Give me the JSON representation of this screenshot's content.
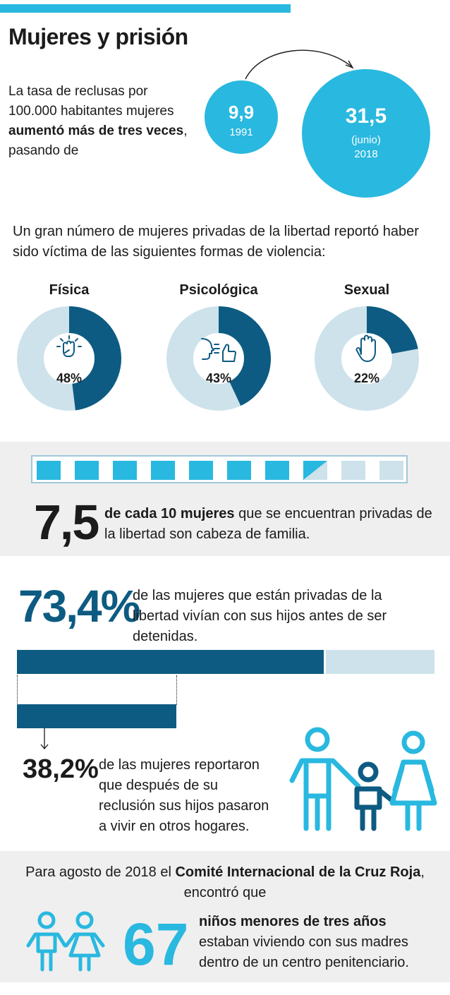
{
  "title": "Mujeres y prisión",
  "intro": {
    "text_a": "La tasa de reclusas por 100.000 habitantes mujeres ",
    "text_b": "aumentó más de tres veces",
    "text_c": ", pasando de"
  },
  "rate_1991": {
    "value": "9,9",
    "year": "1991"
  },
  "rate_2018": {
    "value": "31,5",
    "sub": "(junio)",
    "year": "2018"
  },
  "violence": {
    "lead": "Un gran número de mujeres privadas de la libertad reportó haber sido víctima de las siguientes formas de violencia:",
    "items": [
      {
        "label": "Física",
        "pct_label": "48%",
        "value": 48,
        "icon": "raised-fist-icon"
      },
      {
        "label": "Psicológica",
        "pct_label": "43%",
        "value": 43,
        "icon": "shouting-face-icon"
      },
      {
        "label": "Sexual",
        "pct_label": "22%",
        "value": 22,
        "icon": "stop-hand-icon"
      }
    ],
    "colors": {
      "filled": "#0d5b82",
      "empty": "#cde2ea"
    }
  },
  "head_of_family": {
    "value": "7,5",
    "text_bold": "de cada 10 mujeres",
    "text_rest": " que se encuentran privadas de la libertad son cabeza de familia.",
    "fill_fraction": 0.75
  },
  "lived_with_children": {
    "value": "73,4%",
    "text": "de las mujeres que están privadas de la libertad vivían con sus hijos antes de ser detenidas.",
    "fraction": 0.734
  },
  "children_moved": {
    "value": "38,2%",
    "text": "de las mujeres reportaron que después de su reclusión sus hijos pasaron a vivir en otros hogares.",
    "fraction": 0.382,
    "icon": "family-icon"
  },
  "icrc": {
    "text_a": "Para agosto de 2018 el ",
    "text_b": "Comité Internacional de la Cruz Roja",
    "text_c": ", encontró que",
    "value": "67",
    "detail_bold": "niños menores de tres años",
    "detail_rest": " estaban viviendo con sus madres dentro de un centro penitenciario.",
    "icon": "two-children-icon"
  },
  "colors": {
    "accent": "#29b8df",
    "dark": "#0d5b82",
    "light": "#cde2ea",
    "panel": "#efefef"
  }
}
